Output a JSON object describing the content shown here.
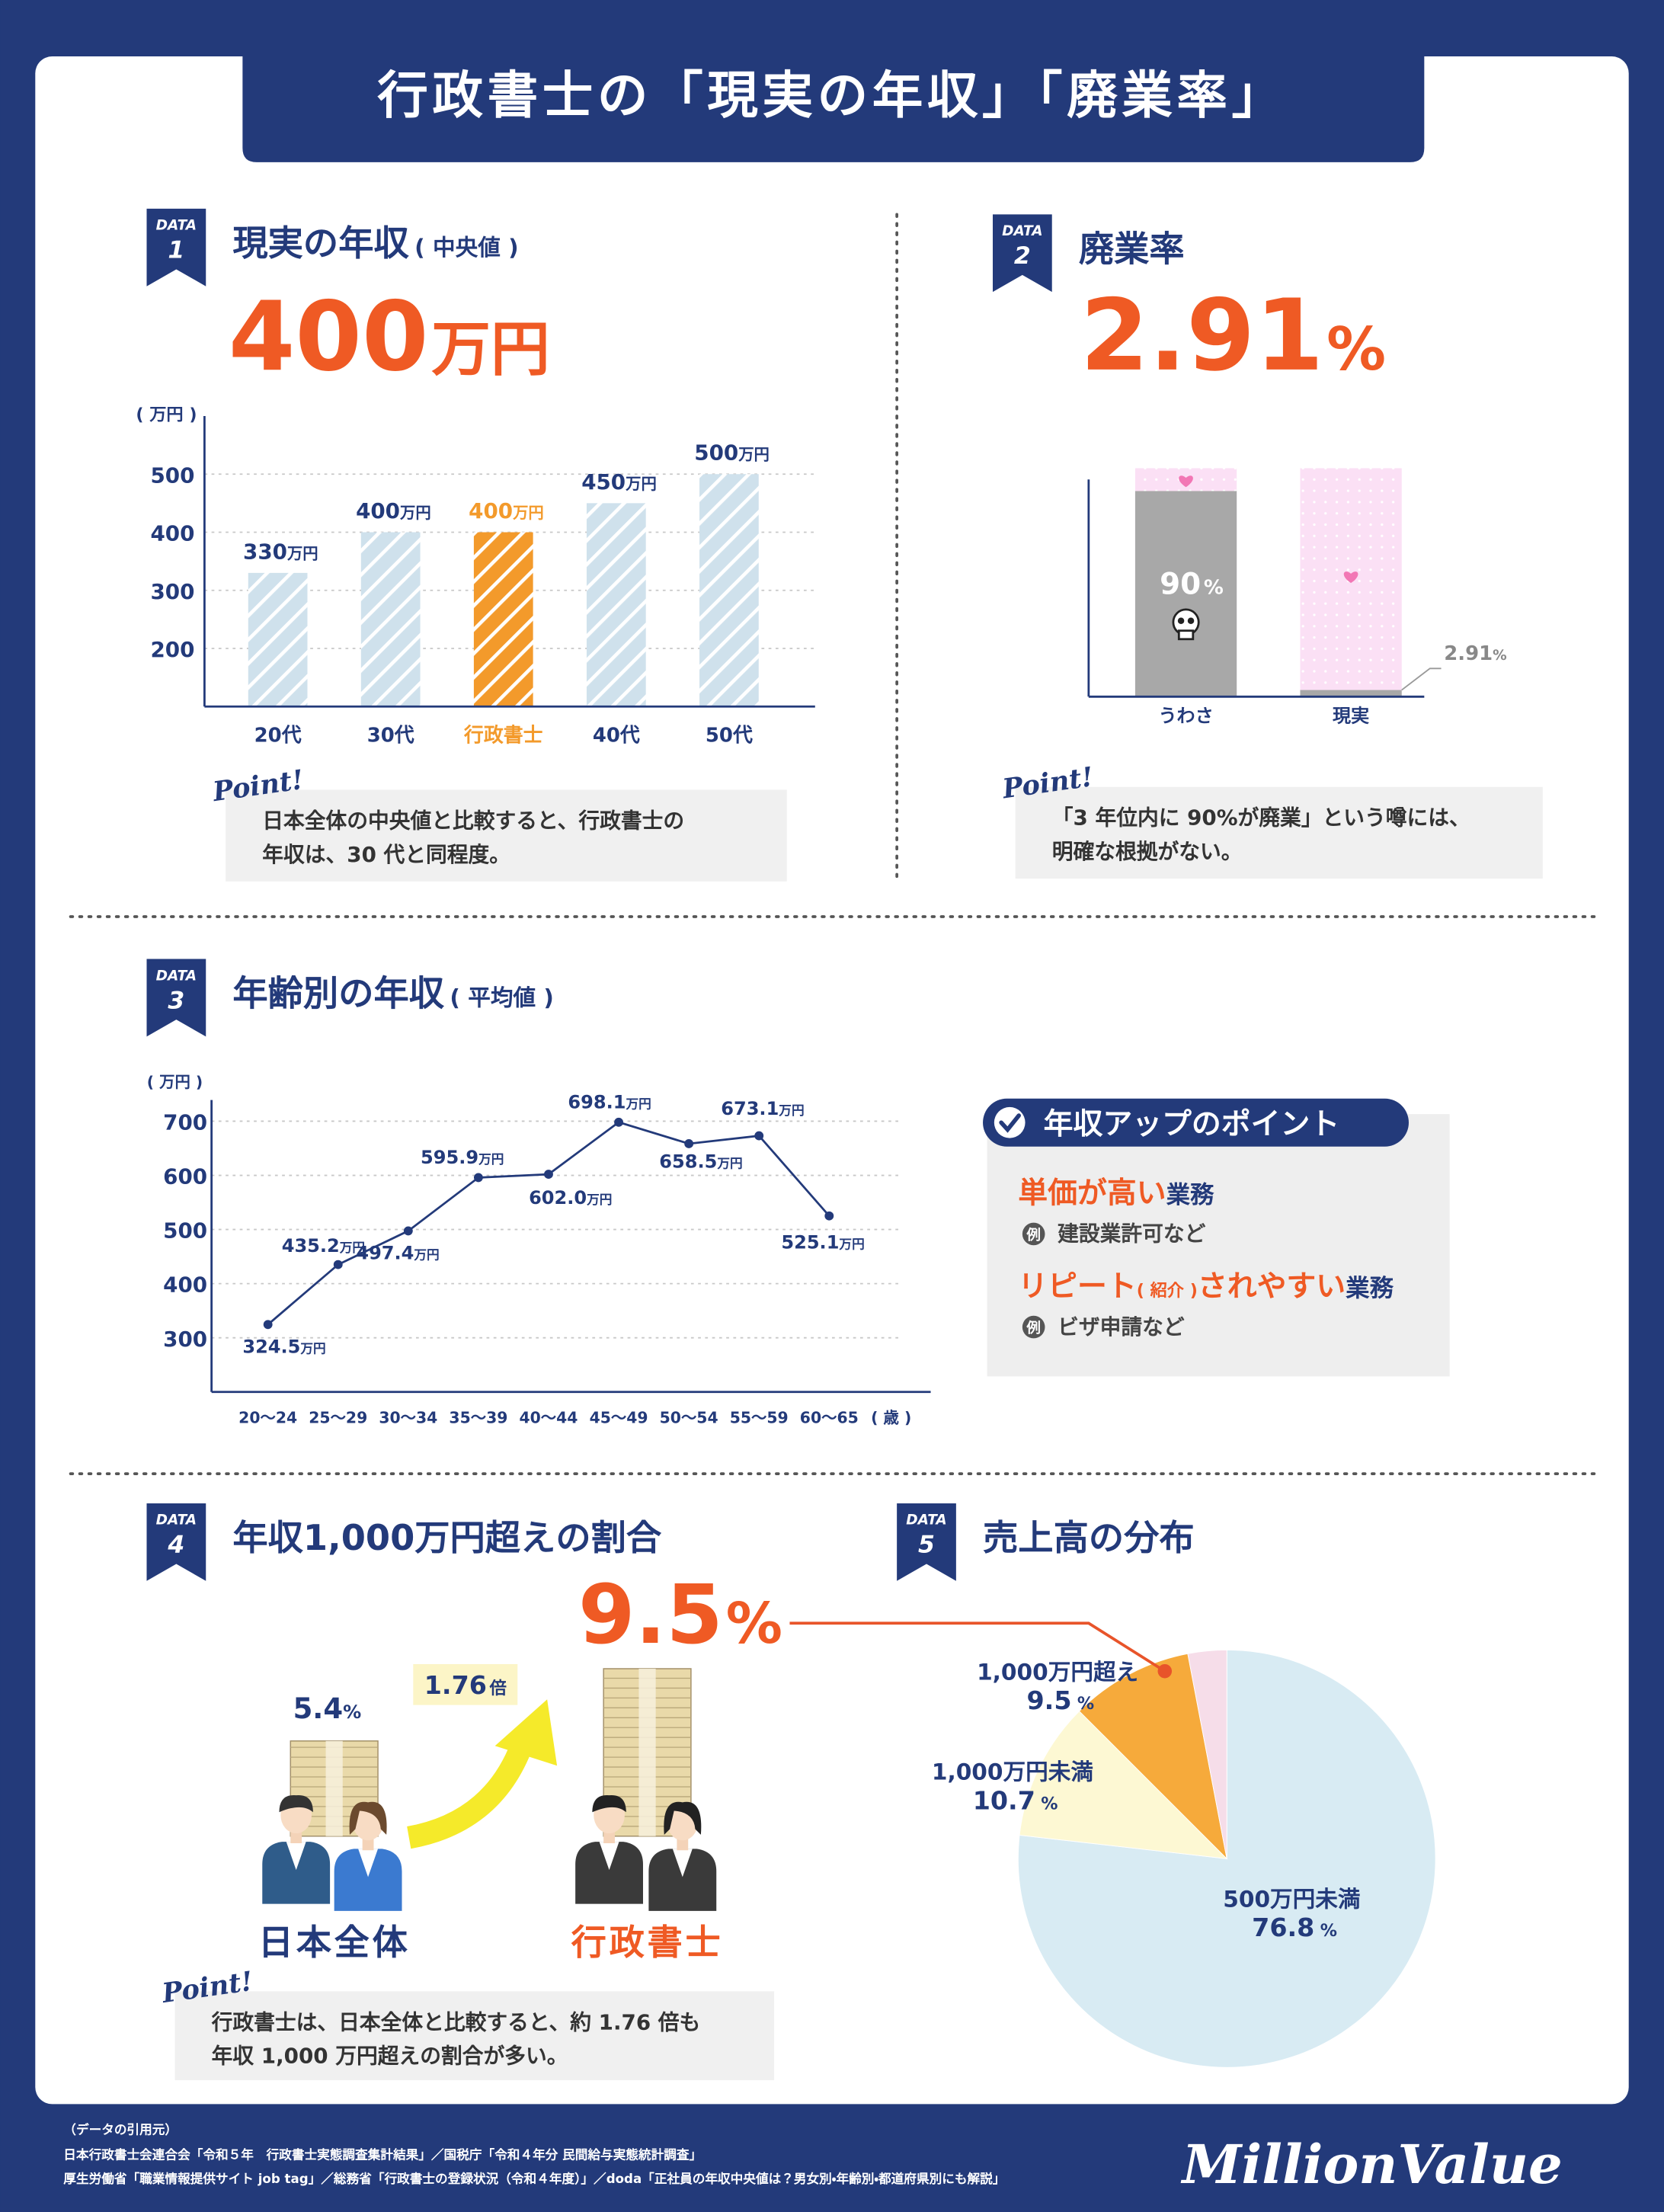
{
  "title": "行政書士の「現実の年収」「廃業率」",
  "sections": [
    {
      "tag": "DATA",
      "number": "1",
      "heading": "現実の年収",
      "note": "( 中央値 )",
      "headline": {
        "value": 400,
        "unit": "万円"
      },
      "point": {
        "label": "Point!",
        "lines": [
          "日本全体の中央値と比較すると、行政書士の",
          "年収は、30 代と同程度。"
        ]
      }
    },
    {
      "tag": "DATA",
      "number": "2",
      "heading": "廃業率",
      "headline": {
        "value": 2.91,
        "unit": "%"
      },
      "point": {
        "label": "Point!",
        "lines": [
          "「3 年位内に 90%が廃業」という噂には、",
          "明確な根拠がない。"
        ]
      }
    },
    {
      "tag": "DATA",
      "number": "3",
      "heading": "年齢別の年収",
      "note": "( 平均値 )"
    },
    {
      "tag": "DATA",
      "number": "4",
      "heading": "年収1,000万円超えの割合",
      "headline": {
        "value": 9.5,
        "unit": "%"
      },
      "point": {
        "label": "Point!",
        "lines": [
          "行政書士は、日本全体と比較すると、約 1.76 倍も",
          "年収 1,000 万円超えの割合が多い。"
        ]
      }
    },
    {
      "tag": "DATA",
      "number": "5",
      "heading": "売上高の分布"
    }
  ],
  "tips": {
    "title": "年収アップのポイント",
    "items": [
      {
        "parts": [
          {
            "text": "単価が高い",
            "color": "#ef5a24"
          },
          {
            "text": "業務",
            "color": "#233a7a"
          }
        ],
        "example_badge": "例",
        "example": "建設業許可など"
      },
      {
        "parts": [
          {
            "text": "リピート",
            "color": "#ef5a24"
          },
          {
            "text": "( 紹介 )",
            "color": "#ef5a24"
          },
          {
            "text": "されやすい",
            "color": "#ef5a24"
          },
          {
            "text": "業務",
            "color": "#233a7a"
          }
        ],
        "example_badge": "例",
        "example": "ビザ申請など"
      }
    ]
  },
  "sources": {
    "heading": "（データの引用元）",
    "lines": [
      "日本行政書士会連合会「令和５年　行政書士実態調査集計結果」／国税庁「令和４年分 民間給与実態統計調査」",
      "厚生労働省「職業情報提供サイト job tag」／総務省「行政書士の登録状況（令和４年度）」／doda「正社員の年収中央値は？男女別・年齢別・都道府県別にも解説」"
    ]
  },
  "brand": "MillionValue",
  "chart_data": [
    {
      "type": "bar",
      "y_unit_label": "( 万円 )",
      "categories": [
        "20代",
        "30代",
        "行政書士",
        "40代",
        "50代"
      ],
      "values": [
        330,
        400,
        400,
        450,
        500
      ],
      "value_unit": "万円",
      "colors": [
        "#cfe1ec",
        "#cfe1ec",
        "#f39a2b",
        "#cfe1ec",
        "#cfe1ec"
      ],
      "label_colors": [
        "#233a7a",
        "#233a7a",
        "#f39a2b",
        "#233a7a",
        "#233a7a"
      ],
      "ylim": [
        100,
        600
      ],
      "yticks": [
        200,
        300,
        400,
        500
      ],
      "grid": true
    },
    {
      "type": "bar",
      "categories": [
        "うわさ",
        "現実"
      ],
      "values": [
        90,
        2.91
      ],
      "value_unit": "%",
      "color": "#a8a8a8",
      "background_color": "#fbe0f5",
      "ylim": [
        0,
        100
      ]
    },
    {
      "type": "line",
      "x_unit_label": "( 歳 )",
      "y_unit_label": "( 万円 )",
      "categories": [
        "20～24",
        "25～29",
        "30～34",
        "35～39",
        "40～44",
        "45～49",
        "50～54",
        "55～59",
        "60～65"
      ],
      "values": [
        324.5,
        435.2,
        497.4,
        595.9,
        602.0,
        698.1,
        658.5,
        673.1,
        525.1
      ],
      "value_labels": [
        "324.5",
        "435.2",
        "497.4",
        "595.9",
        "602.0",
        "698.1",
        "658.5",
        "673.1",
        "525.1"
      ],
      "value_unit": "万円",
      "color": "#233a7a",
      "ylim": [
        200,
        760
      ],
      "yticks": [
        300,
        400,
        500,
        600,
        700
      ],
      "grid": true
    },
    {
      "type": "pictogram",
      "categories": [
        "日本全体",
        "行政書士"
      ],
      "values": [
        5.4,
        9.5
      ],
      "value_unit": "%",
      "label_colors": [
        "#233a7a",
        "#ef5a24"
      ],
      "ratio": {
        "value": 1.76,
        "unit": "倍"
      }
    },
    {
      "type": "pie",
      "categories": [
        "500万円未満",
        "1,000万円未満",
        "1,000万円超え",
        null
      ],
      "values": [
        76.8,
        10.7,
        9.5,
        3.0
      ],
      "value_unit": "%",
      "colors": [
        "#d8ebf3",
        "#fdf8d3",
        "#f6aa3b",
        "#f6dde9"
      ]
    }
  ]
}
